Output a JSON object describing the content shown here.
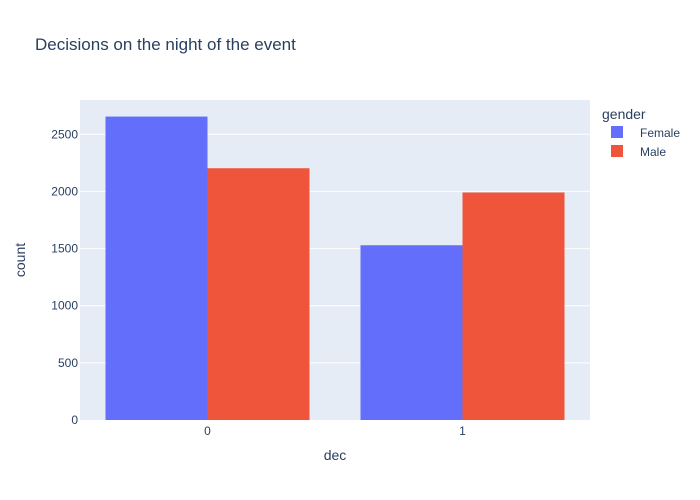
{
  "chart_data": {
    "type": "bar",
    "title": "Decisions on the night of the event",
    "xlabel": "dec",
    "ylabel": "count",
    "categories": [
      "0",
      "1"
    ],
    "series": [
      {
        "name": "Female",
        "values": [
          2655,
          1529
        ],
        "color": "#636efa"
      },
      {
        "name": "Male",
        "values": [
          2203,
          1991
        ],
        "color": "#ef553b"
      }
    ],
    "ylim": [
      0,
      2800
    ],
    "yticks": [
      0,
      500,
      1000,
      1500,
      2000,
      2500
    ],
    "grid": true,
    "background": "#e5ecf6",
    "legend": {
      "title": "gender",
      "placement": "top-right"
    }
  }
}
